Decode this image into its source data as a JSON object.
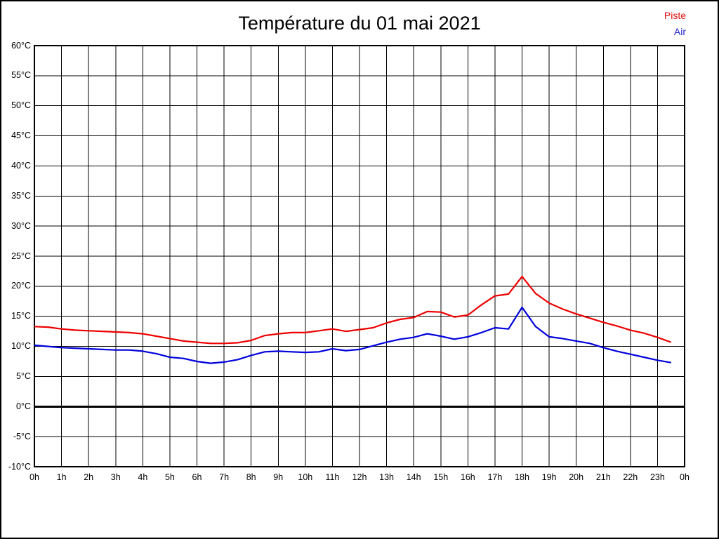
{
  "header": {
    "title": "Température du 01 mai 2021"
  },
  "legend": {
    "items": [
      {
        "label": "Piste",
        "color": "#dd1111"
      },
      {
        "label": "Air",
        "color": "#2222cc"
      }
    ]
  },
  "chart_data": {
    "type": "line",
    "title": "Température du 01 mai 2021",
    "xlabel": "",
    "ylabel": "",
    "x_unit": "hour of day",
    "xlim": [
      0,
      24
    ],
    "ylim": [
      -10,
      60
    ],
    "grid": true,
    "grid_color": "#000000",
    "zero_line_value": 0,
    "legend_position": "top-right-outside",
    "xtick_values": [
      0,
      1,
      2,
      3,
      4,
      5,
      6,
      7,
      8,
      9,
      10,
      11,
      12,
      13,
      14,
      15,
      16,
      17,
      18,
      19,
      20,
      21,
      22,
      23,
      24
    ],
    "xtick_labels": [
      "0h",
      "1h",
      "2h",
      "3h",
      "4h",
      "5h",
      "6h",
      "7h",
      "8h",
      "9h",
      "10h",
      "11h",
      "12h",
      "13h",
      "14h",
      "15h",
      "16h",
      "17h",
      "18h",
      "19h",
      "20h",
      "21h",
      "22h",
      "23h",
      "0h"
    ],
    "ytick_values": [
      60,
      55,
      50,
      45,
      40,
      35,
      30,
      25,
      20,
      15,
      10,
      5,
      0,
      -5,
      -10
    ],
    "ytick_labels": [
      "60°C",
      "55°C",
      "50°C",
      "45°C",
      "40°C",
      "35°C",
      "30°C",
      "25°C",
      "20°C",
      "15°C",
      "10°C",
      "5°C",
      "0°C",
      "-5°C",
      "-10°C"
    ],
    "x": [
      0,
      0.5,
      1,
      1.5,
      2,
      2.5,
      3,
      3.5,
      4,
      4.5,
      5,
      5.5,
      6,
      6.5,
      7,
      7.5,
      8,
      8.5,
      9,
      9.5,
      10,
      10.5,
      11,
      11.5,
      12,
      12.5,
      13,
      13.5,
      14,
      14.5,
      15,
      15.5,
      16,
      16.5,
      17,
      17.5,
      18,
      18.5,
      19,
      19.5,
      20,
      20.5,
      21,
      21.5,
      22,
      22.5,
      23,
      23.5
    ],
    "series": [
      {
        "name": "Piste",
        "color": "#ee0000",
        "values": [
          13.3,
          13.2,
          12.9,
          12.7,
          12.6,
          12.5,
          12.4,
          12.3,
          12.1,
          11.7,
          11.3,
          10.9,
          10.7,
          10.5,
          10.5,
          10.6,
          11.0,
          11.8,
          12.1,
          12.3,
          12.3,
          12.6,
          12.9,
          12.5,
          12.8,
          13.1,
          13.9,
          14.5,
          14.8,
          15.8,
          15.7,
          14.9,
          15.2,
          16.9,
          18.4,
          18.7,
          21.6,
          18.8,
          17.2,
          16.2,
          15.4,
          14.7,
          14.0,
          13.4,
          12.7,
          12.2,
          11.5,
          10.7
        ]
      },
      {
        "name": "Air",
        "color": "#0000dd",
        "values": [
          10.2,
          10.0,
          9.8,
          9.7,
          9.6,
          9.5,
          9.4,
          9.4,
          9.2,
          8.8,
          8.2,
          8.0,
          7.5,
          7.2,
          7.4,
          7.8,
          8.5,
          9.1,
          9.2,
          9.1,
          9.0,
          9.1,
          9.6,
          9.3,
          9.5,
          10.1,
          10.7,
          11.2,
          11.5,
          12.1,
          11.7,
          11.2,
          11.6,
          12.3,
          13.1,
          12.9,
          16.5,
          13.3,
          11.6,
          11.3,
          10.9,
          10.5,
          9.8,
          9.2,
          8.7,
          8.2,
          7.7,
          7.3
        ]
      }
    ]
  }
}
